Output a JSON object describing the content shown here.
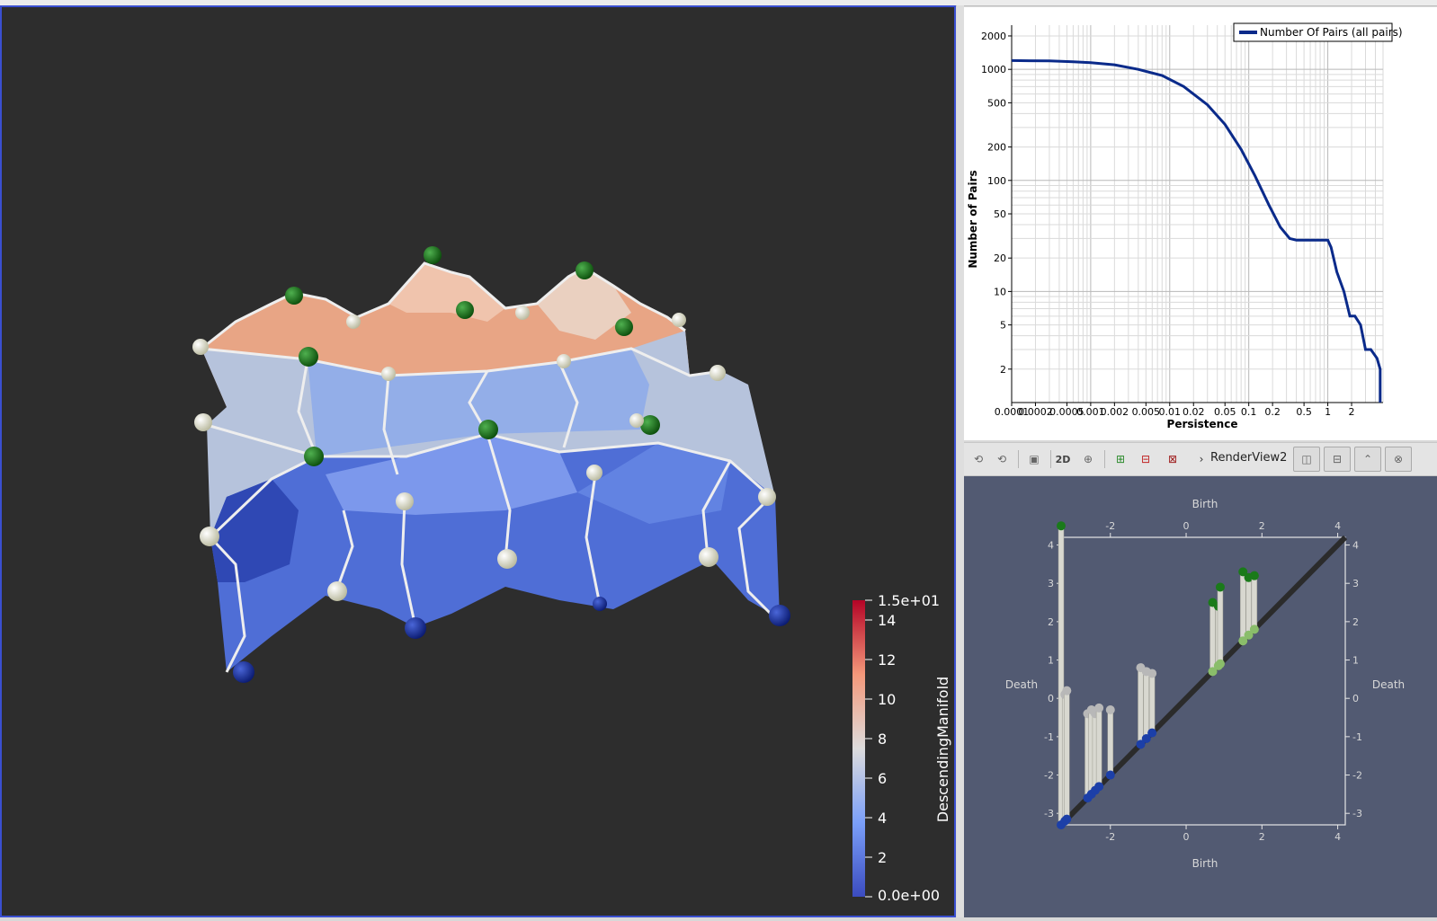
{
  "left_view": {
    "colorbar": {
      "title": "DescendingManifold",
      "tick_labels": [
        "1.5e+01",
        "14",
        "12",
        "10",
        "8",
        "6",
        "4",
        "2",
        "0.0e+00"
      ],
      "range": [
        0,
        15
      ]
    }
  },
  "chart_data": {
    "type": "line",
    "xlabel": "Persistence",
    "ylabel": "Number of Pairs",
    "x_scale": "log",
    "y_scale": "log",
    "xlim": [
      0.0001,
      5
    ],
    "ylim": [
      1,
      2500
    ],
    "x_tick_labels": [
      "0.0001",
      "0.0002",
      "0.0005",
      "0.001",
      "0.002",
      "0.005",
      "0.01",
      "0.02",
      "0.05",
      "0.1",
      "0.2",
      "0.5",
      "1",
      "2"
    ],
    "y_tick_labels": [
      "2000",
      "1000",
      "500",
      "200",
      "100",
      "50",
      "20",
      "10",
      "5",
      "2"
    ],
    "legend": {
      "position": "top-right",
      "entries": [
        "Number Of Pairs (all pairs)"
      ]
    },
    "grid": true,
    "series": [
      {
        "name": "Number Of Pairs (all pairs)",
        "color": "#0a2a8a",
        "x": [
          0.0001,
          0.0003,
          0.0006,
          0.001,
          0.002,
          0.004,
          0.008,
          0.015,
          0.03,
          0.05,
          0.08,
          0.12,
          0.18,
          0.25,
          0.33,
          0.4,
          0.5,
          0.7,
          1.0,
          1.1,
          1.3,
          1.6,
          1.9,
          2.2,
          2.6,
          3.0,
          3.5,
          4.2,
          4.6,
          4.6
        ],
        "y": [
          1200,
          1190,
          1170,
          1150,
          1100,
          1000,
          880,
          700,
          480,
          320,
          190,
          110,
          60,
          38,
          30,
          29,
          29,
          29,
          29,
          25,
          15,
          10,
          6,
          6,
          5,
          3,
          3,
          2.5,
          2,
          1
        ]
      }
    ]
  },
  "toolbar": {
    "btn_2d": "2D",
    "view_label": "RenderView2",
    "icons": [
      "reset-camera-icon",
      "reset-camera-closest-icon",
      "capture-icon",
      "2d-toggle-icon",
      "zoom-to-box-icon",
      "select-points-icon",
      "select-cells-icon",
      "select-block-icon",
      "split-horizontal-icon",
      "split-vertical-icon",
      "maximize-icon",
      "close-icon"
    ]
  },
  "persistence_view": {
    "axis_title_x": "Birth",
    "axis_title_y": "Death",
    "x_ticks": [
      "-2",
      "0",
      "2",
      "4"
    ],
    "y_ticks": [
      "4",
      "3",
      "2",
      "1",
      "0",
      "-1",
      "-2",
      "-3"
    ],
    "range": [
      -3.3,
      4.2
    ]
  }
}
